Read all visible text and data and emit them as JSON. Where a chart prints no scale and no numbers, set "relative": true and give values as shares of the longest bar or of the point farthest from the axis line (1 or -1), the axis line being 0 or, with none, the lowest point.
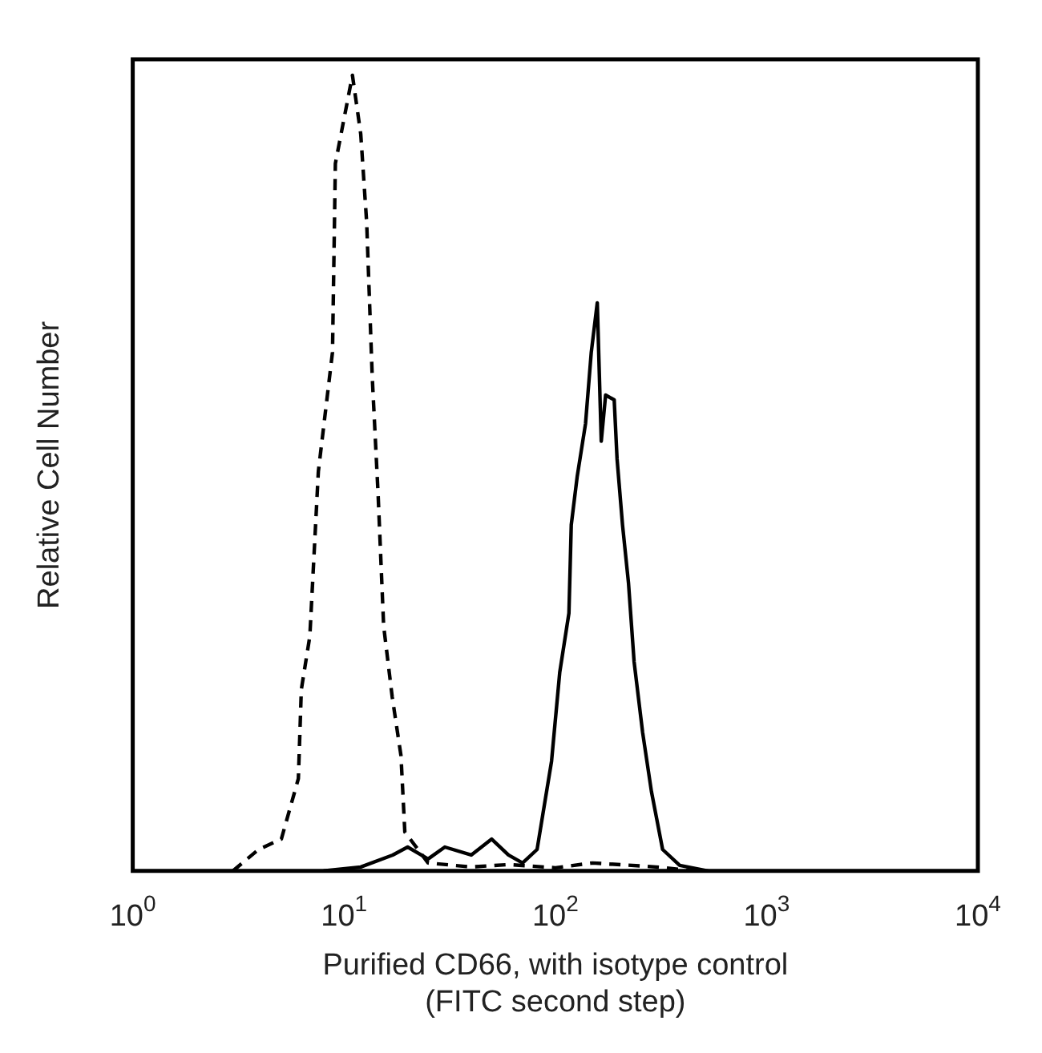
{
  "chart_data": {
    "type": "line",
    "relative": true,
    "log": "x",
    "grid": false,
    "legend": false,
    "marker": "none",
    "xlabel": "Purified CD66, with isotype control\n(FITC second step)",
    "ylabel": "Relative Cell Number",
    "xlim": [
      1,
      10000
    ],
    "xticks": [
      {
        "value": 1,
        "label": "10$^{0}$"
      },
      {
        "value": 10,
        "label": "10$^{1}$"
      },
      {
        "value": 100,
        "label": "10$^{2}$"
      },
      {
        "value": 1000,
        "label": "10$^{3}$"
      },
      {
        "value": 10000,
        "label": "10$^{4}$"
      }
    ],
    "series": [
      {
        "color": "#000000",
        "line_style": "dashed",
        "x": [
          2.98,
          3.94,
          5.05,
          6.08,
          6.28,
          6.89,
          7.56,
          8.82,
          9.1,
          10.96,
          12.0,
          12.8,
          13.6,
          14.5,
          15.4,
          16.9,
          18.6,
          19.4,
          25,
          40,
          60,
          100,
          150,
          300,
          450
        ],
        "values": [
          0,
          0.027,
          0.04,
          0.116,
          0.228,
          0.295,
          0.502,
          0.652,
          0.889,
          1,
          0.926,
          0.815,
          0.621,
          0.473,
          0.308,
          0.219,
          0.145,
          0.049,
          0.01,
          0.005,
          0.008,
          0.004,
          0.01,
          0.005,
          0
        ]
      },
      {
        "color": "#000000",
        "line_style": "solid",
        "x": [
          8,
          12,
          17,
          20,
          25,
          30,
          40,
          50,
          60,
          70,
          82,
          96,
          105,
          116,
          119,
          127,
          139,
          148,
          158,
          165,
          173,
          190,
          196,
          208,
          222,
          236,
          259,
          285,
          322,
          388,
          530
        ],
        "values": [
          0,
          0.005,
          0.02,
          0.03,
          0.015,
          0.03,
          0.02,
          0.04,
          0.02,
          0.01,
          0.027,
          0.138,
          0.25,
          0.324,
          0.435,
          0.496,
          0.562,
          0.652,
          0.714,
          0.54,
          0.598,
          0.592,
          0.518,
          0.435,
          0.362,
          0.263,
          0.174,
          0.1,
          0.027,
          0.007,
          0
        ]
      }
    ]
  }
}
